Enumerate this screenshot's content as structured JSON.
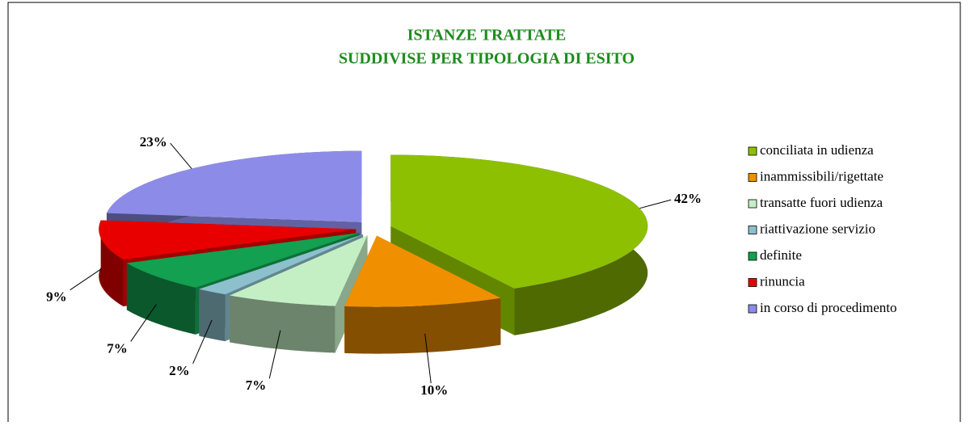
{
  "chart_data": {
    "type": "pie3d",
    "title": [
      "ISTANZE  TRATTATE",
      "SUDDIVISE  PER TIPOLOGIA DI ESITO"
    ],
    "categories": [
      "conciliata in udienza",
      "inammissibili/rigettate",
      "transatte fuori udienza",
      "riattivazione servizio",
      "definite",
      "rinuncia",
      "in corso di procedimento"
    ],
    "values": [
      42,
      10,
      7,
      2,
      7,
      9,
      23
    ],
    "value_labels": [
      "42%",
      "10%",
      "7%",
      "2%",
      "7%",
      "9%",
      "23%"
    ],
    "colors": [
      "#8dc000",
      "#f09000",
      "#c4efc4",
      "#8cc0cc",
      "#13a050",
      "#e80000",
      "#8c8ce8"
    ],
    "legend": "right"
  }
}
